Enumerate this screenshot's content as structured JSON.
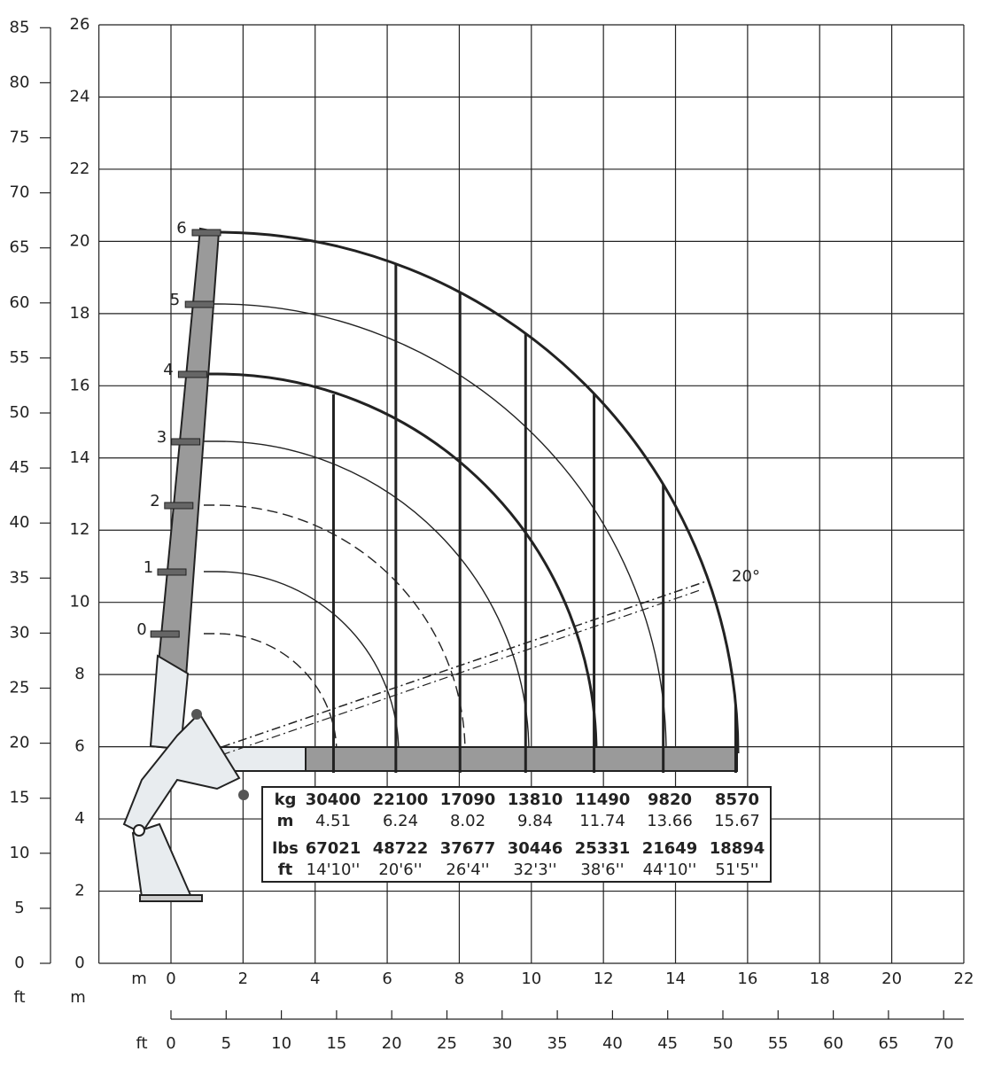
{
  "axes": {
    "ft_left": {
      "unit": "ft",
      "ticks": [
        "0",
        "5",
        "10",
        "15",
        "20",
        "25",
        "30",
        "35",
        "40",
        "45",
        "50",
        "55",
        "60",
        "65",
        "70",
        "75",
        "80",
        "85"
      ]
    },
    "m_left": {
      "unit": "m",
      "ticks": [
        "0",
        "2",
        "4",
        "6",
        "8",
        "10",
        "12",
        "14",
        "16",
        "18",
        "20",
        "22",
        "24",
        "26"
      ]
    },
    "m_bottom": {
      "unit": "m",
      "ticks": [
        "0",
        "2",
        "4",
        "6",
        "8",
        "10",
        "12",
        "14",
        "16",
        "18",
        "20",
        "22"
      ]
    },
    "ft_bottom": {
      "unit": "ft",
      "ticks": [
        "0",
        "5",
        "10",
        "15",
        "20",
        "25",
        "30",
        "35",
        "40",
        "45",
        "50",
        "55",
        "60",
        "65",
        "70"
      ]
    }
  },
  "boom_sections": [
    "0",
    "1",
    "2",
    "3",
    "4",
    "5",
    "6"
  ],
  "angle_label": "20°",
  "table": {
    "rows": [
      [
        "kg",
        "30400",
        "22100",
        "17090",
        "13810",
        "11490",
        "9820",
        "8570"
      ],
      [
        "m",
        "4.51",
        "6.24",
        "8.02",
        "9.84",
        "11.74",
        "13.66",
        "15.67"
      ],
      [
        "lbs",
        "67021",
        "48722",
        "37677",
        "30446",
        "25331",
        "21649",
        "18894"
      ],
      [
        "ft",
        "14'10''",
        "20'6''",
        "26'4''",
        "32'3''",
        "38'6''",
        "44'10''",
        "51'5''"
      ]
    ]
  }
}
